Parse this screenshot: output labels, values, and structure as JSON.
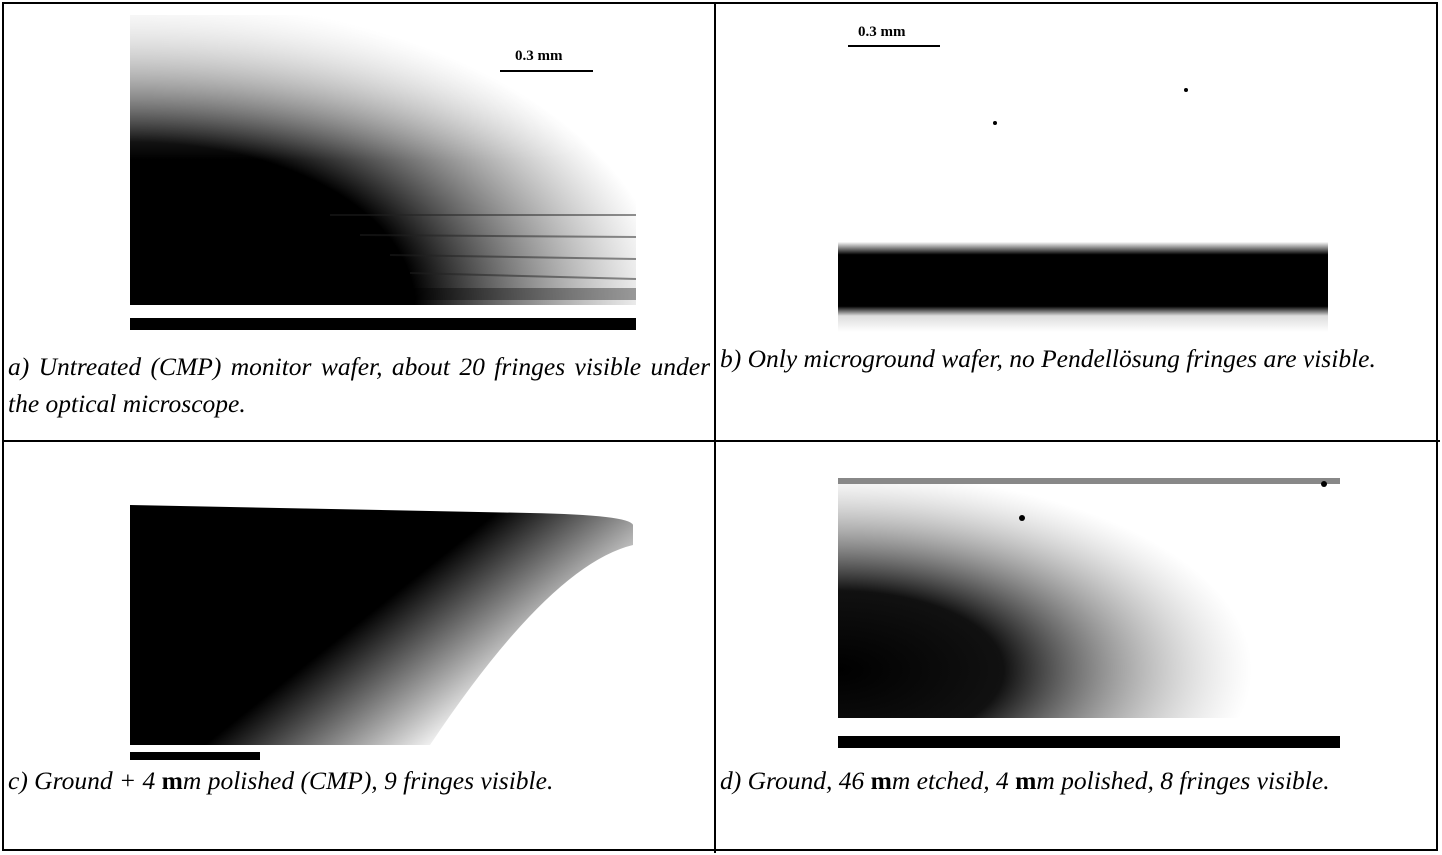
{
  "panels": [
    {
      "scale_label": "0.3 mm",
      "caption": [
        "a) Untreated (CMP) monitor wafer, about 20 fringes visible under the optical microscope."
      ]
    },
    {
      "scale_label": "0.3 mm",
      "caption": [
        "b) Only microground wafer, no Pendellösung fringes are visible."
      ]
    },
    {
      "caption": [
        "c) Ground + 4 ",
        "m",
        "m polished (CMP), 9 fringes visible."
      ]
    },
    {
      "caption": [
        "d) Ground, 46 ",
        "m",
        "m etched, 4 ",
        "m",
        "m polished, 8 fringes visible."
      ]
    }
  ]
}
